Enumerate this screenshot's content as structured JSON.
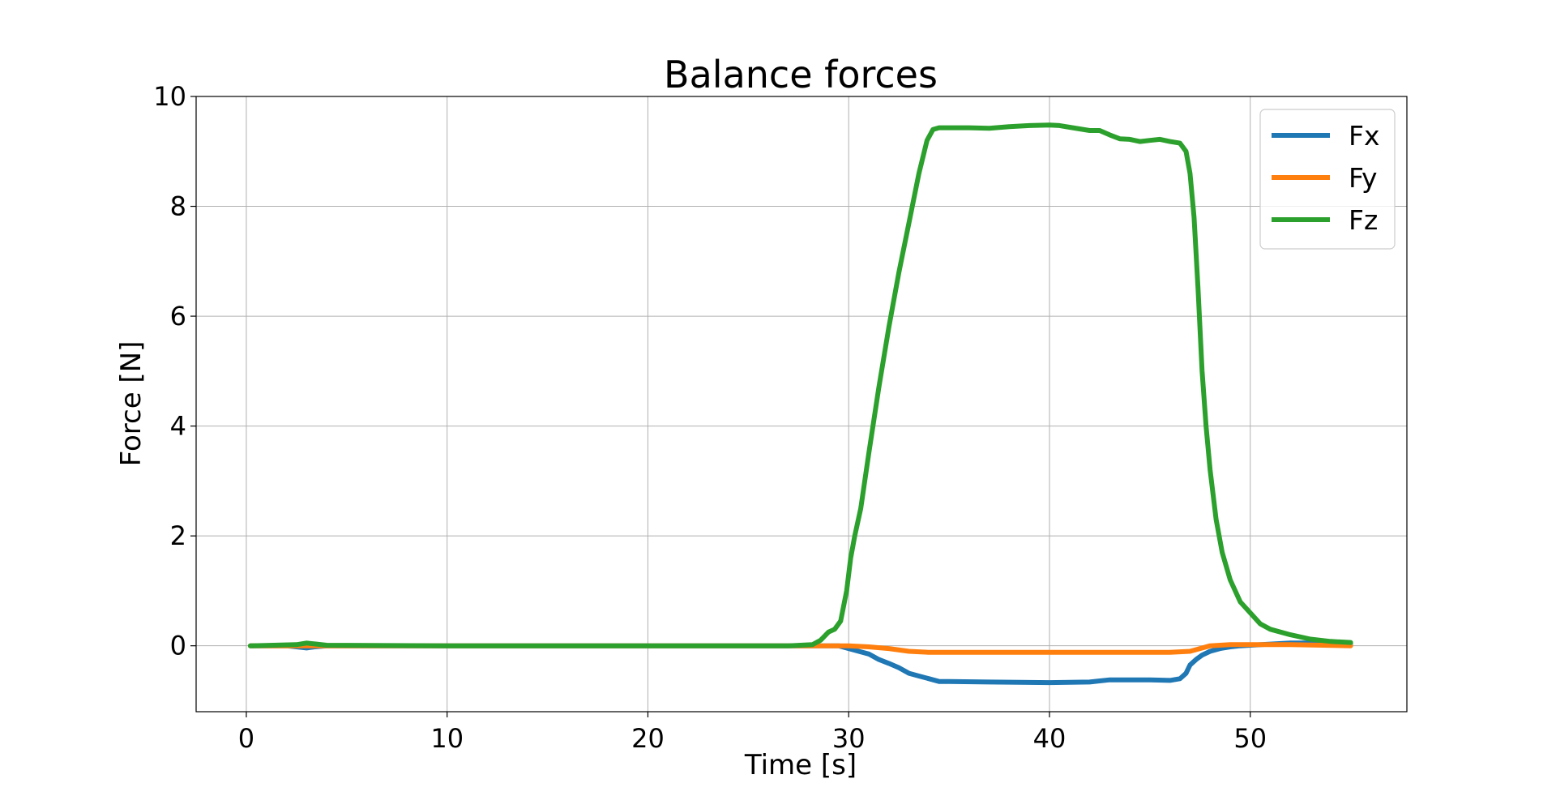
{
  "chart_data": {
    "type": "line",
    "title": "Balance forces",
    "xlabel": "Time [s]",
    "ylabel": "Force [N]",
    "xlim": [
      -2.5,
      57.8
    ],
    "ylim": [
      -1.2,
      10
    ],
    "xticks": [
      0,
      10,
      20,
      30,
      40,
      50
    ],
    "yticks": [
      0,
      2,
      4,
      6,
      8,
      10
    ],
    "grid": true,
    "legend_position": "top-right",
    "series": [
      {
        "name": "Fx",
        "color": "#1f77b4",
        "x": [
          0.2,
          2.0,
          2.5,
          3.0,
          3.4,
          4.0,
          10,
          20,
          28,
          29.5,
          30.0,
          30.5,
          31.0,
          31.5,
          32.0,
          32.5,
          33.0,
          33.5,
          34.0,
          34.5,
          35.0,
          37.0,
          40.0,
          42.0,
          43.0,
          44.0,
          45.0,
          46.0,
          46.5,
          46.8,
          47.0,
          47.3,
          47.6,
          48.0,
          48.5,
          49.0,
          49.5,
          50.0,
          51.0,
          52.0,
          53.0,
          54.0,
          55.0
        ],
        "y": [
          0.0,
          0.0,
          -0.02,
          -0.04,
          -0.02,
          0.0,
          0.0,
          0.0,
          0.0,
          0.0,
          -0.05,
          -0.1,
          -0.15,
          -0.25,
          -0.32,
          -0.4,
          -0.5,
          -0.55,
          -0.6,
          -0.65,
          -0.65,
          -0.66,
          -0.67,
          -0.66,
          -0.62,
          -0.62,
          -0.62,
          -0.63,
          -0.6,
          -0.5,
          -0.35,
          -0.25,
          -0.17,
          -0.1,
          -0.05,
          -0.02,
          0.0,
          0.01,
          0.03,
          0.05,
          0.05,
          0.05,
          0.04
        ]
      },
      {
        "name": "Fy",
        "color": "#ff7f0e",
        "x": [
          0.2,
          10,
          20,
          28,
          29.5,
          30.0,
          31.0,
          32.0,
          33.0,
          34.0,
          35.0,
          37.0,
          40.0,
          42.0,
          44.0,
          46.0,
          47.0,
          47.5,
          48.0,
          49.0,
          50.0,
          52.0,
          55.0
        ],
        "y": [
          0.0,
          0.0,
          0.0,
          0.0,
          0.0,
          0.0,
          -0.02,
          -0.05,
          -0.1,
          -0.12,
          -0.12,
          -0.12,
          -0.12,
          -0.12,
          -0.12,
          -0.12,
          -0.1,
          -0.05,
          0.0,
          0.02,
          0.02,
          0.02,
          0.0
        ]
      },
      {
        "name": "Fz",
        "color": "#2ca02c",
        "x": [
          0.2,
          2.5,
          3.0,
          3.5,
          4.0,
          10,
          20,
          27,
          28.2,
          28.6,
          29.0,
          29.3,
          29.6,
          29.9,
          30.1,
          30.3,
          30.6,
          31.0,
          31.5,
          32.0,
          32.5,
          33.0,
          33.5,
          33.9,
          34.2,
          34.5,
          35.0,
          36.0,
          37.0,
          38.0,
          39.0,
          40.0,
          40.5,
          41.0,
          42.0,
          42.5,
          43.0,
          43.5,
          44.0,
          44.5,
          45.0,
          45.5,
          46.0,
          46.5,
          46.8,
          47.0,
          47.2,
          47.4,
          47.6,
          47.8,
          48.0,
          48.3,
          48.6,
          49.0,
          49.5,
          50.0,
          50.5,
          51.0,
          52.0,
          53.0,
          54.0,
          55.0
        ],
        "y": [
          0.0,
          0.02,
          0.05,
          0.03,
          0.01,
          0.0,
          0.0,
          0.0,
          0.02,
          0.1,
          0.25,
          0.3,
          0.45,
          1.0,
          1.6,
          2.0,
          2.5,
          3.5,
          4.7,
          5.8,
          6.8,
          7.7,
          8.6,
          9.2,
          9.4,
          9.43,
          9.43,
          9.43,
          9.42,
          9.45,
          9.47,
          9.48,
          9.47,
          9.44,
          9.38,
          9.38,
          9.3,
          9.23,
          9.22,
          9.18,
          9.2,
          9.22,
          9.18,
          9.15,
          9.0,
          8.6,
          7.8,
          6.5,
          5.0,
          4.0,
          3.2,
          2.3,
          1.7,
          1.2,
          0.8,
          0.6,
          0.4,
          0.3,
          0.2,
          0.12,
          0.08,
          0.06
        ]
      }
    ]
  }
}
